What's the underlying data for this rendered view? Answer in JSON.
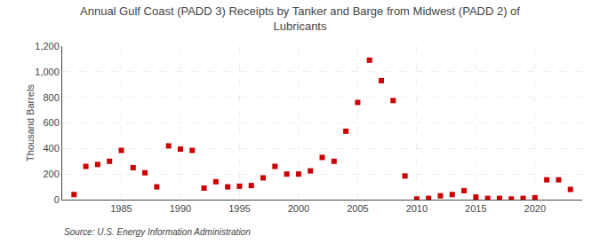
{
  "chart_data": {
    "type": "scatter",
    "title": "Annual Gulf Coast (PADD 3) Receipts by Tanker and Barge from Midwest (PADD 2) of\nLubricants",
    "ylabel": "Thousand Barrels",
    "annotations": [
      "Source: U.S. Energy Information Administration"
    ],
    "x": [
      1981,
      1982,
      1983,
      1984,
      1985,
      1986,
      1987,
      1988,
      1989,
      1990,
      1991,
      1992,
      1993,
      1994,
      1995,
      1996,
      1997,
      1998,
      1999,
      2000,
      2001,
      2002,
      2003,
      2004,
      2005,
      2006,
      2007,
      2008,
      2009,
      2010,
      2011,
      2012,
      2013,
      2014,
      2015,
      2016,
      2017,
      2018,
      2019,
      2020,
      2021,
      2022,
      2023
    ],
    "values": [
      40,
      260,
      275,
      300,
      385,
      250,
      210,
      100,
      420,
      395,
      385,
      90,
      140,
      100,
      105,
      110,
      170,
      260,
      200,
      200,
      225,
      330,
      300,
      535,
      760,
      1090,
      930,
      775,
      185,
      5,
      10,
      30,
      40,
      70,
      20,
      10,
      10,
      5,
      10,
      15,
      155,
      155,
      80
    ],
    "color": "#cc0000",
    "marker": "square",
    "xlim": [
      1980,
      2024
    ],
    "xticks": [
      1985,
      1990,
      1995,
      2000,
      2005,
      2010,
      2015,
      2020
    ],
    "ylim": [
      0,
      1200
    ],
    "yticks": [
      0,
      200,
      400,
      600,
      800,
      {
        "value": 1000,
        "label": "1,000"
      },
      {
        "value": 1200,
        "label": "1,200"
      }
    ],
    "grid": true
  }
}
